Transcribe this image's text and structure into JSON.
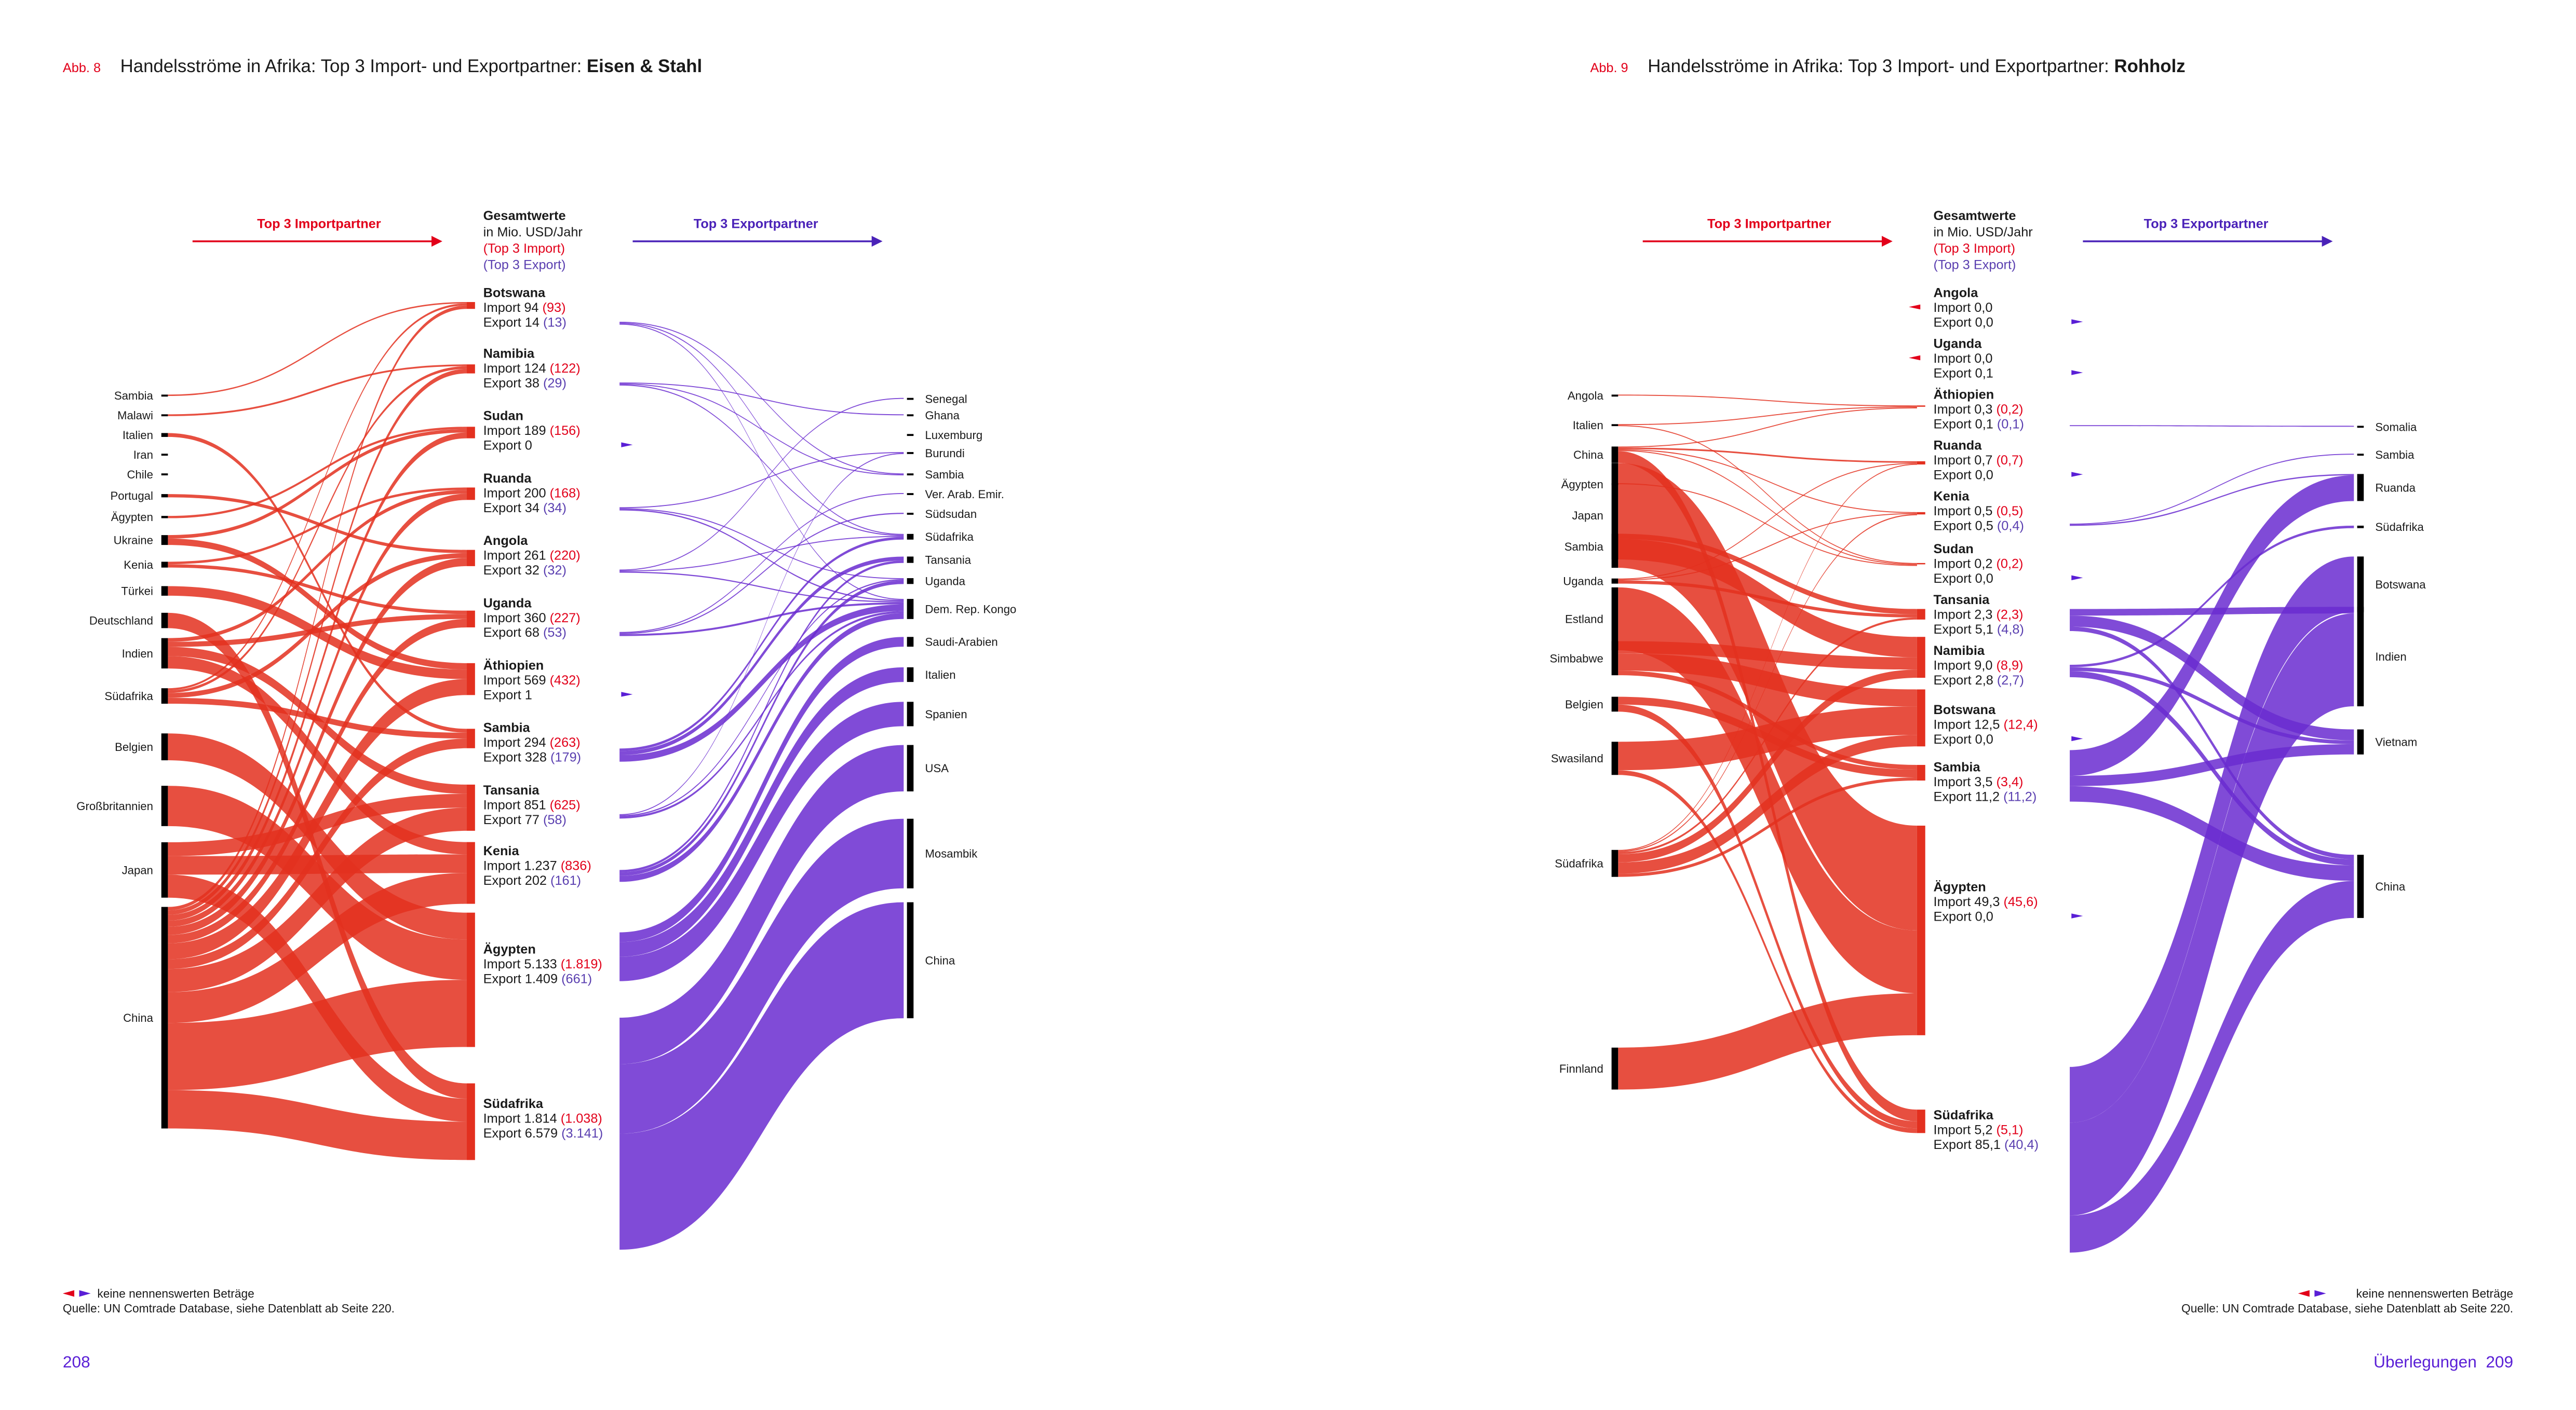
{
  "colors": {
    "import": "#e3301f",
    "export": "#6a2bd0",
    "accent_red": "#e2001a",
    "accent_purple": "#5a3fb0",
    "page_number": "#5a1fd6",
    "node_bar": "#000000"
  },
  "pages": [
    {
      "fig": "Abb. 8",
      "title": "Handelsströme in Afrika: Top 3 Import- und Exportpartner: ",
      "subject": "Eisen & Stahl",
      "import_header": "Top 3 Importpartner",
      "export_header": "Top 3 Exportpartner",
      "totals_header": {
        "l1": "Gesamtwerte",
        "l2": "in Mio. USD/Jahr",
        "l3": "(Top 3 Import)",
        "l4": "(Top 3 Export)"
      },
      "legend": "keine nennenswerten Beträge",
      "source": "Quelle: UN Comtrade Database,  siehe Datenblatt ab Seite 220.",
      "page": "208"
    },
    {
      "fig": "Abb. 9",
      "title": "Handelsströme in Afrika: Top 3 Import- und Exportpartner: ",
      "subject": "Rohholz",
      "import_header": "Top 3 Importpartner",
      "export_header": "Top 3 Exportpartner",
      "totals_header": {
        "l1": "Gesamtwerte",
        "l2": "in Mio. USD/Jahr",
        "l3": "(Top 3 Import)",
        "l4": "(Top 3 Export)"
      },
      "legend": "keine nennenswerten Beträge",
      "source": "Quelle: UN Comtrade Database, siehe Datenblatt ab Seite 220.",
      "page": "Überlegungen  209"
    }
  ],
  "chart_data": [
    {
      "type": "sankey",
      "title": "Handelsströme in Afrika: Top 3 Import- und Exportpartner: Eisen & Stahl",
      "units": "Mio. USD/Jahr",
      "decimals": 0,
      "import_label": "Import",
      "export_label": "Export",
      "import_partners": [
        "Sambia",
        "Malawi",
        "Italien",
        "Iran",
        "Chile",
        "Portugal",
        "Ägypten",
        "Ukraine",
        "Kenia",
        "Türkei",
        "Deutschland",
        "Indien",
        "Südafrika",
        "Belgien",
        "Großbritannien",
        "Japan",
        "China"
      ],
      "export_partners": [
        "Senegal",
        "Ghana",
        "Luxemburg",
        "Burundi",
        "Sambia",
        "Ver. Arab. Emir.",
        "Südsudan",
        "Südafrika",
        "Tansania",
        "Uganda",
        "Dem. Rep. Kongo",
        "Saudi-Arabien",
        "Italien",
        "Spanien",
        "USA",
        "Mosambik",
        "China"
      ],
      "countries": [
        {
          "name": "Botswana",
          "import": 94,
          "import_top3": 93,
          "export": 14,
          "export_top3": 13,
          "from": [
            "Sambia",
            "Südafrika",
            "China"
          ],
          "to": [
            "Sambia",
            "Südafrika",
            "Dem. Rep. Kongo"
          ]
        },
        {
          "name": "Namibia",
          "import": 124,
          "import_top3": 122,
          "export": 38,
          "export_top3": 29,
          "from": [
            "Malawi",
            "Südafrika",
            "China"
          ],
          "to": [
            "Ghana",
            "Sambia",
            "Südafrika"
          ]
        },
        {
          "name": "Sudan",
          "import": 189,
          "import_top3": 156,
          "export": 0,
          "export_top3": null,
          "from": [
            "Ägypten",
            "Ukraine",
            "China"
          ],
          "to": []
        },
        {
          "name": "Ruanda",
          "import": 200,
          "import_top3": 168,
          "export": 34,
          "export_top3": 34,
          "from": [
            "Kenia",
            "Indien",
            "China"
          ],
          "to": [
            "Burundi",
            "Uganda",
            "Dem. Rep. Kongo"
          ]
        },
        {
          "name": "Angola",
          "import": 261,
          "import_top3": 220,
          "export": 32,
          "export_top3": 32,
          "from": [
            "Portugal",
            "Südafrika",
            "China"
          ],
          "to": [
            "Senegal",
            "Südafrika",
            "Dem. Rep. Kongo"
          ]
        },
        {
          "name": "Uganda",
          "import": 360,
          "import_top3": 227,
          "export": 68,
          "export_top3": 53,
          "from": [
            "Kenia",
            "Indien",
            "China"
          ],
          "to": [
            "Ver. Arab. Emir.",
            "Südsudan",
            "Dem. Rep. Kongo"
          ]
        },
        {
          "name": "Äthiopien",
          "import": 569,
          "import_top3": 432,
          "export": 1,
          "export_top3": null,
          "from": [
            "Ukraine",
            "Türkei",
            "China"
          ],
          "to": []
        },
        {
          "name": "Sambia",
          "import": 294,
          "import_top3": 263,
          "export": 328,
          "export_top3": 179,
          "from": [
            "Italien",
            "Südafrika",
            "China"
          ],
          "to": [
            "Südafrika",
            "Tansania",
            "Dem. Rep. Kongo"
          ]
        },
        {
          "name": "Tansania",
          "import": 851,
          "import_top3": 625,
          "export": 77,
          "export_top3": 58,
          "from": [
            "Indien",
            "Japan",
            "China"
          ],
          "to": [
            "Burundi",
            "Uganda",
            "Dem. Rep. Kongo"
          ]
        },
        {
          "name": "Kenia",
          "import": 1237,
          "import_top3": 836,
          "export": 202,
          "export_top3": 161,
          "from": [
            "Indien",
            "Japan",
            "China"
          ],
          "to": [
            "Tansania",
            "Uganda",
            "Dem. Rep. Kongo"
          ]
        },
        {
          "name": "Ägypten",
          "import": 5133,
          "import_top3": 1819,
          "export": 1409,
          "export_top3": 661,
          "from": [
            "Belgien",
            "Großbritannien",
            "China"
          ],
          "to": [
            "Saudi-Arabien",
            "Italien",
            "Spanien"
          ]
        },
        {
          "name": "Südafrika",
          "import": 1814,
          "import_top3": 1038,
          "export": 6579,
          "export_top3": 3141,
          "from": [
            "Deutschland",
            "Japan",
            "China"
          ],
          "to": [
            "USA",
            "Mosambik",
            "China"
          ]
        }
      ]
    },
    {
      "type": "sankey",
      "title": "Handelsströme in Afrika: Top 3 Import- und Exportpartner: Rohholz",
      "units": "Mio. USD/Jahr",
      "decimals": 1,
      "import_label": "Import",
      "export_label": "Export",
      "import_partners": [
        "Angola",
        "Italien",
        "China",
        "Ägypten",
        "Japan",
        "Sambia",
        "Uganda",
        "Estland",
        "Simbabwe",
        "Belgien",
        "Swasiland",
        "Südafrika",
        "Finnland"
      ],
      "export_partners": [
        "Somalia",
        "Sambia",
        "Ruanda",
        "Südafrika",
        "Botswana",
        "Indien",
        "Vietnam",
        "China"
      ],
      "countries": [
        {
          "name": "Angola",
          "import": 0.0,
          "import_top3": null,
          "export": 0.0,
          "export_top3": null,
          "from": [],
          "to": []
        },
        {
          "name": "Uganda",
          "import": 0.0,
          "import_top3": null,
          "export": 0.1,
          "export_top3": null,
          "from": [],
          "to": []
        },
        {
          "name": "Äthiopien",
          "import": 0.3,
          "import_top3": 0.2,
          "export": 0.1,
          "export_top3": 0.1,
          "from": [
            "Italien",
            "China",
            "Angola"
          ],
          "to": [
            "Somalia"
          ]
        },
        {
          "name": "Ruanda",
          "import": 0.7,
          "import_top3": 0.7,
          "export": 0.0,
          "export_top3": null,
          "from": [
            "Uganda",
            "Südafrika",
            "China"
          ],
          "to": []
        },
        {
          "name": "Kenia",
          "import": 0.5,
          "import_top3": 0.5,
          "export": 0.5,
          "export_top3": 0.4,
          "from": [
            "Uganda",
            "China",
            "Südafrika"
          ],
          "to": [
            "Ruanda",
            "Sambia"
          ]
        },
        {
          "name": "Sudan",
          "import": 0.2,
          "import_top3": 0.2,
          "export": 0.0,
          "export_top3": null,
          "from": [
            "Ägypten",
            "China",
            "Italien"
          ],
          "to": []
        },
        {
          "name": "Tansania",
          "import": 2.3,
          "import_top3": 2.3,
          "export": 5.1,
          "export_top3": 4.8,
          "from": [
            "Südafrika",
            "Uganda",
            "Sambia"
          ],
          "to": [
            "China",
            "Indien",
            "Vietnam"
          ]
        },
        {
          "name": "Namibia",
          "import": 9.0,
          "import_top3": 8.9,
          "export": 2.8,
          "export_top3": 2.7,
          "from": [
            "Südafrika",
            "Simbabwe",
            "Sambia"
          ],
          "to": [
            "Südafrika",
            "Vietnam",
            "China"
          ]
        },
        {
          "name": "Botswana",
          "import": 12.5,
          "import_top3": 12.4,
          "export": 0.0,
          "export_top3": null,
          "from": [
            "Südafrika",
            "Simbabwe",
            "Swasiland"
          ],
          "to": []
        },
        {
          "name": "Sambia",
          "import": 3.5,
          "import_top3": 3.4,
          "export": 11.2,
          "export_top3": 11.2,
          "from": [
            "Südafrika",
            "Simbabwe",
            "Belgien"
          ],
          "to": [
            "Vietnam",
            "China",
            "Ruanda"
          ]
        },
        {
          "name": "Ägypten",
          "import": 49.3,
          "import_top3": 45.6,
          "export": 0.0,
          "export_top3": null,
          "from": [
            "Finnland",
            "Estland",
            "Japan"
          ],
          "to": []
        },
        {
          "name": "Südafrika",
          "import": 5.2,
          "import_top3": 5.1,
          "export": 85.1,
          "export_top3": 40.4,
          "from": [
            "Swasiland",
            "Belgien",
            "China"
          ],
          "to": [
            "China",
            "Botswana",
            "Indien"
          ]
        }
      ]
    }
  ]
}
